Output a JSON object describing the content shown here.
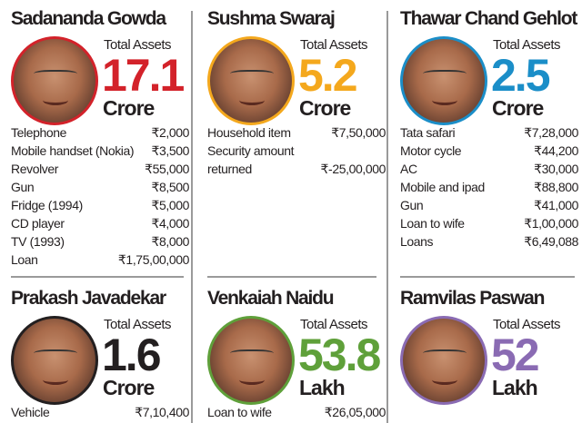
{
  "label_total_assets": "Total Assets",
  "panels": [
    {
      "name": "Sadananda Gowda",
      "amount": "17.1",
      "unit": "Crore",
      "color": "#d3222a",
      "items": [
        [
          "Telephone",
          "₹2,000"
        ],
        [
          "Mobile handset (Nokia)",
          "₹3,500"
        ],
        [
          "Revolver",
          "₹55,000"
        ],
        [
          "Gun",
          "₹8,500"
        ],
        [
          "Fridge (1994)",
          "₹5,000"
        ],
        [
          "CD player",
          "₹4,000"
        ],
        [
          "TV (1993)",
          "₹8,000"
        ],
        [
          "Loan",
          "₹1,75,00,000"
        ]
      ]
    },
    {
      "name": "Sushma Swaraj",
      "amount": "5.2",
      "unit": "Crore",
      "color": "#f4a81d",
      "items": [
        [
          "Household item",
          "₹7,50,000"
        ],
        [
          "Security amount\nreturned",
          "₹-25,00,000"
        ]
      ]
    },
    {
      "name": "Thawar Chand Gehlot",
      "amount": "2.5",
      "unit": "Crore",
      "color": "#1b8ec8",
      "items": [
        [
          "Tata safari",
          "₹7,28,000"
        ],
        [
          "Motor cycle",
          "₹44,200"
        ],
        [
          "AC",
          "₹30,000"
        ],
        [
          "Mobile and ipad",
          "₹88,800"
        ],
        [
          "Gun",
          "₹41,000"
        ],
        [
          "Loan to wife",
          "₹1,00,000"
        ],
        [
          "Loans",
          "₹6,49,088"
        ]
      ]
    },
    {
      "name": "Prakash Javadekar",
      "amount": "1.6",
      "unit": "Crore",
      "color": "#231f20",
      "items": [
        [
          "Vehicle",
          "₹7,10,400"
        ]
      ]
    },
    {
      "name": "Venkaiah Naidu",
      "amount": "53.8",
      "unit": "Lakh",
      "color": "#5fa03a",
      "items": [
        [
          "Loan to wife",
          "₹26,05,000"
        ]
      ]
    },
    {
      "name": "Ramvilas Paswan",
      "amount": "52",
      "unit": "Lakh",
      "color": "#8a6bb3",
      "items": []
    }
  ]
}
